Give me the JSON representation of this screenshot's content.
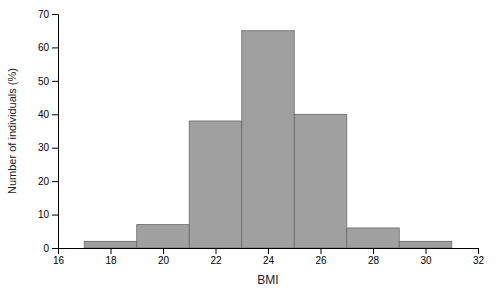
{
  "chart_data": {
    "type": "histogram",
    "bins": [
      17,
      19,
      21,
      23,
      25,
      27,
      29,
      31
    ],
    "values": [
      2,
      7,
      38,
      65,
      40,
      6,
      2
    ],
    "color": "#a0a0a0",
    "xlabel": "BMI",
    "ylabel": "Number of individuals (%)",
    "xlim": [
      16,
      32
    ],
    "ylim": [
      0,
      70
    ],
    "xticks": [
      16,
      18,
      20,
      22,
      24,
      26,
      28,
      30,
      32
    ],
    "yticks": [
      0,
      10,
      20,
      30,
      40,
      50,
      60,
      70
    ],
    "grid": false
  }
}
